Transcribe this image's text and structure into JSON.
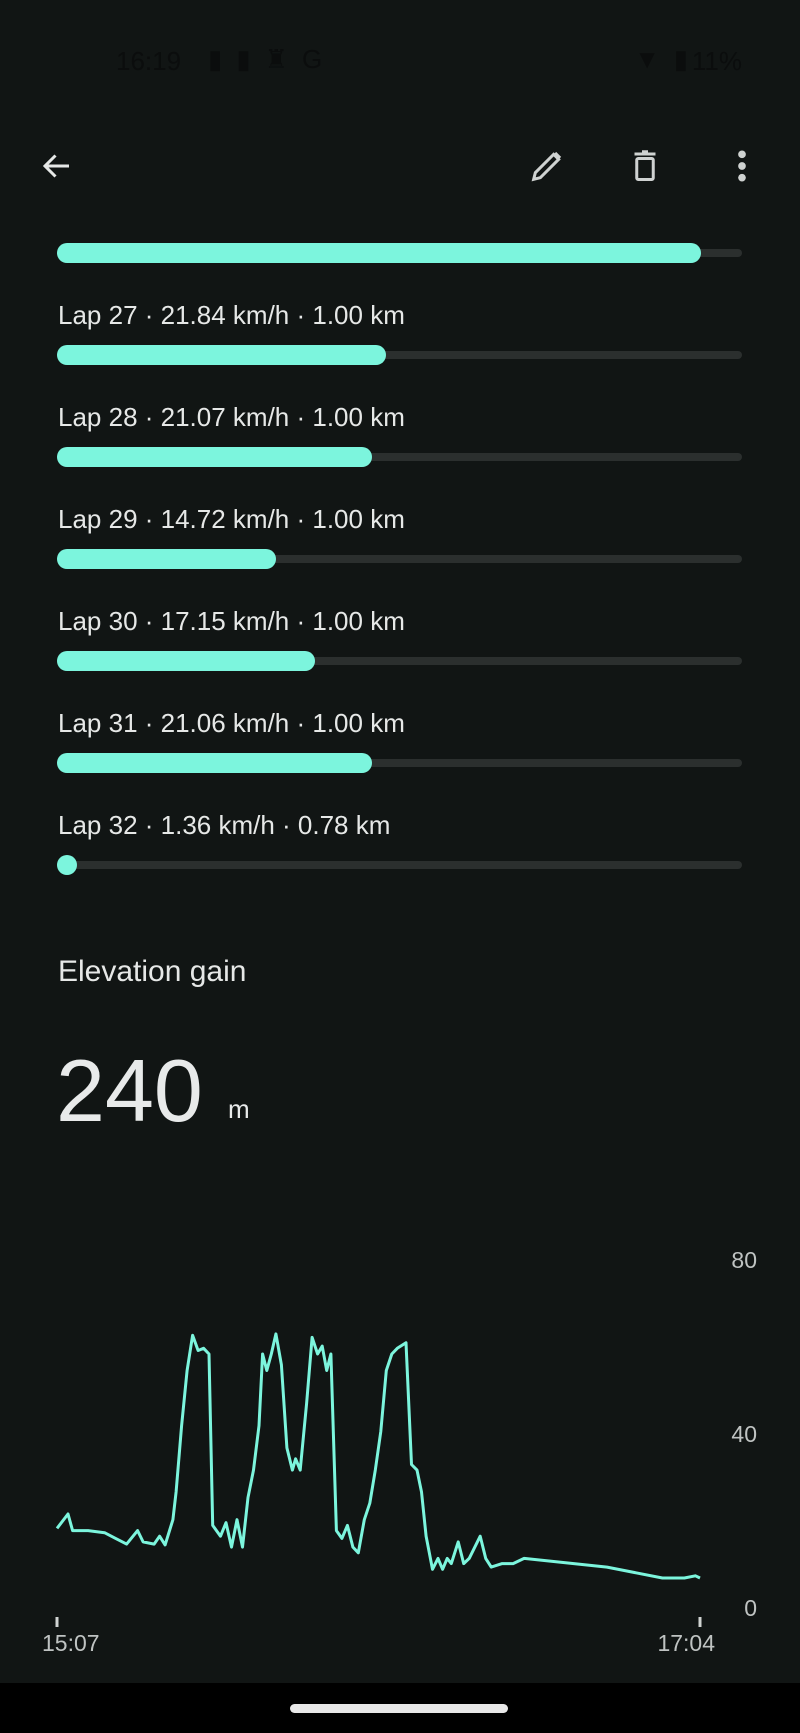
{
  "status_bar": {
    "time": "16:19",
    "battery": "11%",
    "notification_icons": [
      "battery-alert-icon",
      "battery-alert-icon",
      "keyhole-icon",
      "google-icon"
    ]
  },
  "toolbar": {
    "back_icon": "arrow-back-icon",
    "edit_icon": "pencil-icon",
    "delete_icon": "trash-icon",
    "more_icon": "more-vert-icon"
  },
  "accent_color": "#7cf5dd",
  "laps": {
    "top_partial_fill": 0.94,
    "items": [
      {
        "label": "Lap 27 · 21.84 km/h · 1.00 km",
        "fill": 0.48
      },
      {
        "label": "Lap 28 · 21.07 km/h · 1.00 km",
        "fill": 0.46
      },
      {
        "label": "Lap 29 · 14.72 km/h · 1.00 km",
        "fill": 0.32
      },
      {
        "label": "Lap 30 · 17.15 km/h · 1.00 km",
        "fill": 0.376
      },
      {
        "label": "Lap 31 · 21.06 km/h · 1.00 km",
        "fill": 0.46
      },
      {
        "label": "Lap 32 · 1.36 km/h · 0.78 km",
        "fill": 0.0
      }
    ]
  },
  "elevation": {
    "title": "Elevation gain",
    "value": "240",
    "unit": "m"
  },
  "chart_data": {
    "type": "line",
    "ylim": [
      0,
      80
    ],
    "yticks": [
      "0",
      "40",
      "80"
    ],
    "xticks": [
      "15:07",
      "17:04"
    ],
    "xlim": [
      "15:07:00",
      "17:04:00"
    ],
    "grid": false,
    "series": [
      {
        "color": "#7cf5dd",
        "x": [
          "15:07:00",
          "15:09:00",
          "15:09:50",
          "15:12:40",
          "15:15:40",
          "15:17:40",
          "15:19:40",
          "15:21:40",
          "15:22:40",
          "15:24:40",
          "15:25:40",
          "15:26:40",
          "15:28:05",
          "15:28:40",
          "15:29:40",
          "15:30:40",
          "15:31:40",
          "15:32:40",
          "15:33:40",
          "15:34:40",
          "15:35:20",
          "15:36:45",
          "15:37:45",
          "15:38:45",
          "15:39:45",
          "15:40:45",
          "15:41:45",
          "15:42:45",
          "15:43:45",
          "15:44:25",
          "15:45:10",
          "15:46:00",
          "15:46:50",
          "15:47:50",
          "15:48:50",
          "15:49:50",
          "15:50:25",
          "15:51:15",
          "15:52:25",
          "15:53:25",
          "15:54:25",
          "15:55:15",
          "15:56:05",
          "15:56:50",
          "15:57:50",
          "15:58:50",
          "15:59:50",
          "16:00:50",
          "16:01:50",
          "16:02:55",
          "16:03:55",
          "16:04:55",
          "16:05:55",
          "16:06:55",
          "16:07:55",
          "16:08:55",
          "16:10:30",
          "16:11:30",
          "16:12:30",
          "16:13:20",
          "16:14:10",
          "16:15:20",
          "16:16:20",
          "16:17:10",
          "16:18:00",
          "16:18:45",
          "16:20:00",
          "16:21:00",
          "16:22:00",
          "16:24:00",
          "16:25:00",
          "16:26:00",
          "16:28:00",
          "16:30:00",
          "16:32:00",
          "16:47:05",
          "16:57:10",
          "17:01:10",
          "17:03:10",
          "17:04:00"
        ],
        "y": [
          18.3,
          21.6,
          17.8,
          17.8,
          17.3,
          16.0,
          14.7,
          17.8,
          15.2,
          14.7,
          16.5,
          14.5,
          20.3,
          26.7,
          41.9,
          54.6,
          62.7,
          59.2,
          59.7,
          58.4,
          19.0,
          16.5,
          19.6,
          14.0,
          20.3,
          14.0,
          25.4,
          31.7,
          41.9,
          58.4,
          54.6,
          58.4,
          63.0,
          55.9,
          36.8,
          31.7,
          34.3,
          31.7,
          47.0,
          62.2,
          58.4,
          60.2,
          54.6,
          58.4,
          17.8,
          16.0,
          19.0,
          14.0,
          12.7,
          20.3,
          24.1,
          31.7,
          40.6,
          54.6,
          58.4,
          59.7,
          61.0,
          33.0,
          31.7,
          26.7,
          16.5,
          8.9,
          11.4,
          8.9,
          11.4,
          10.2,
          15.2,
          10.2,
          11.4,
          16.5,
          11.4,
          9.4,
          10.2,
          10.2,
          11.4,
          9.4,
          6.9,
          6.9,
          7.4,
          6.9
        ]
      }
    ]
  }
}
